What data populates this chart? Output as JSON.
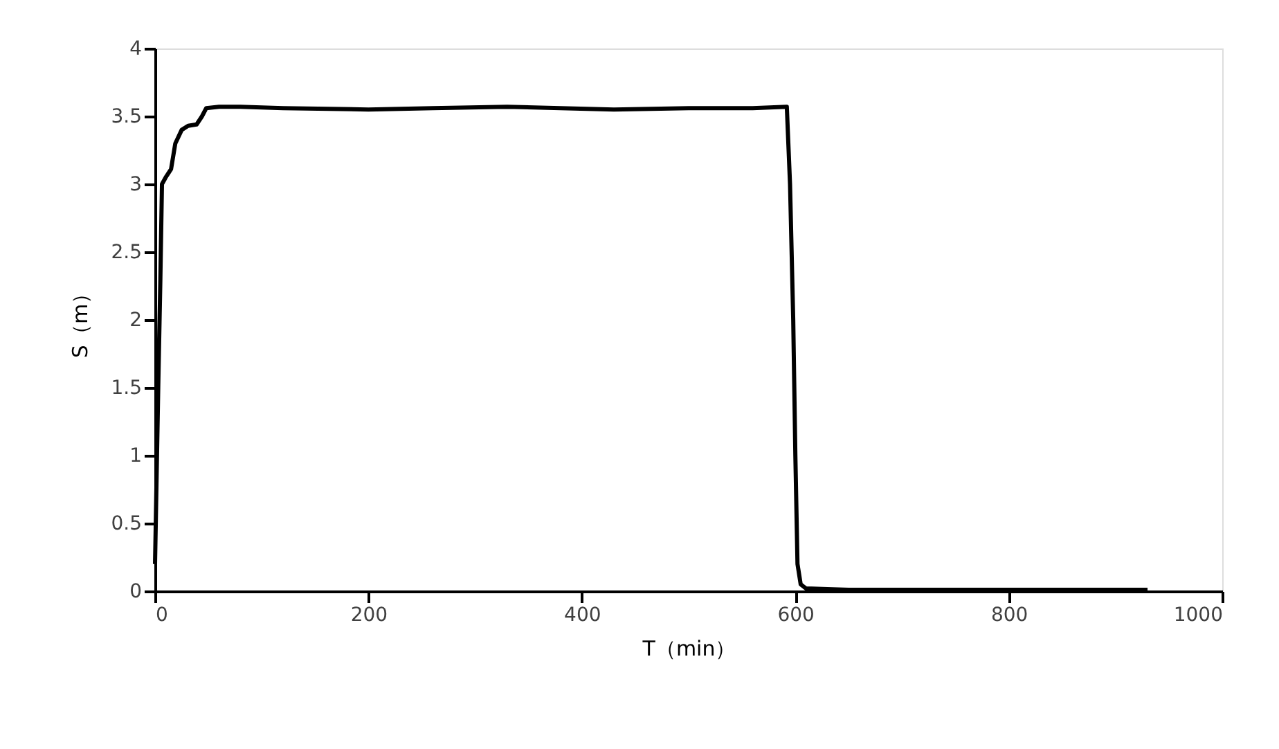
{
  "chart_data": {
    "type": "line",
    "xlabel": "T（min）",
    "ylabel": "S（m）",
    "series": [
      {
        "color": "#000000",
        "x": [
          0,
          3,
          5,
          6.5,
          10,
          15,
          19,
          25,
          31,
          39,
          44,
          48,
          60,
          80,
          120,
          200,
          260,
          330,
          380,
          430,
          500,
          560,
          592,
          595,
          598,
          600,
          602,
          605,
          610,
          650,
          700,
          800,
          930
        ],
        "values": [
          0.2,
          1.5,
          2.3,
          3.0,
          3.05,
          3.11,
          3.3,
          3.4,
          3.43,
          3.44,
          3.5,
          3.56,
          3.57,
          3.57,
          3.56,
          3.55,
          3.56,
          3.57,
          3.56,
          3.55,
          3.56,
          3.56,
          3.57,
          3.0,
          2.0,
          1.0,
          0.2,
          0.05,
          0.02,
          0.01,
          0.01,
          0.01,
          0.01
        ]
      }
    ],
    "xlim": [
      0,
      1000
    ],
    "xticks": [
      0,
      200,
      400,
      600,
      800,
      1000
    ],
    "ylim": [
      0,
      4
    ],
    "yticks": [
      0,
      0.5,
      1,
      1.5,
      2,
      2.5,
      3,
      3.5,
      4
    ],
    "grid": false,
    "marker": "none",
    "line_style": "solid"
  }
}
